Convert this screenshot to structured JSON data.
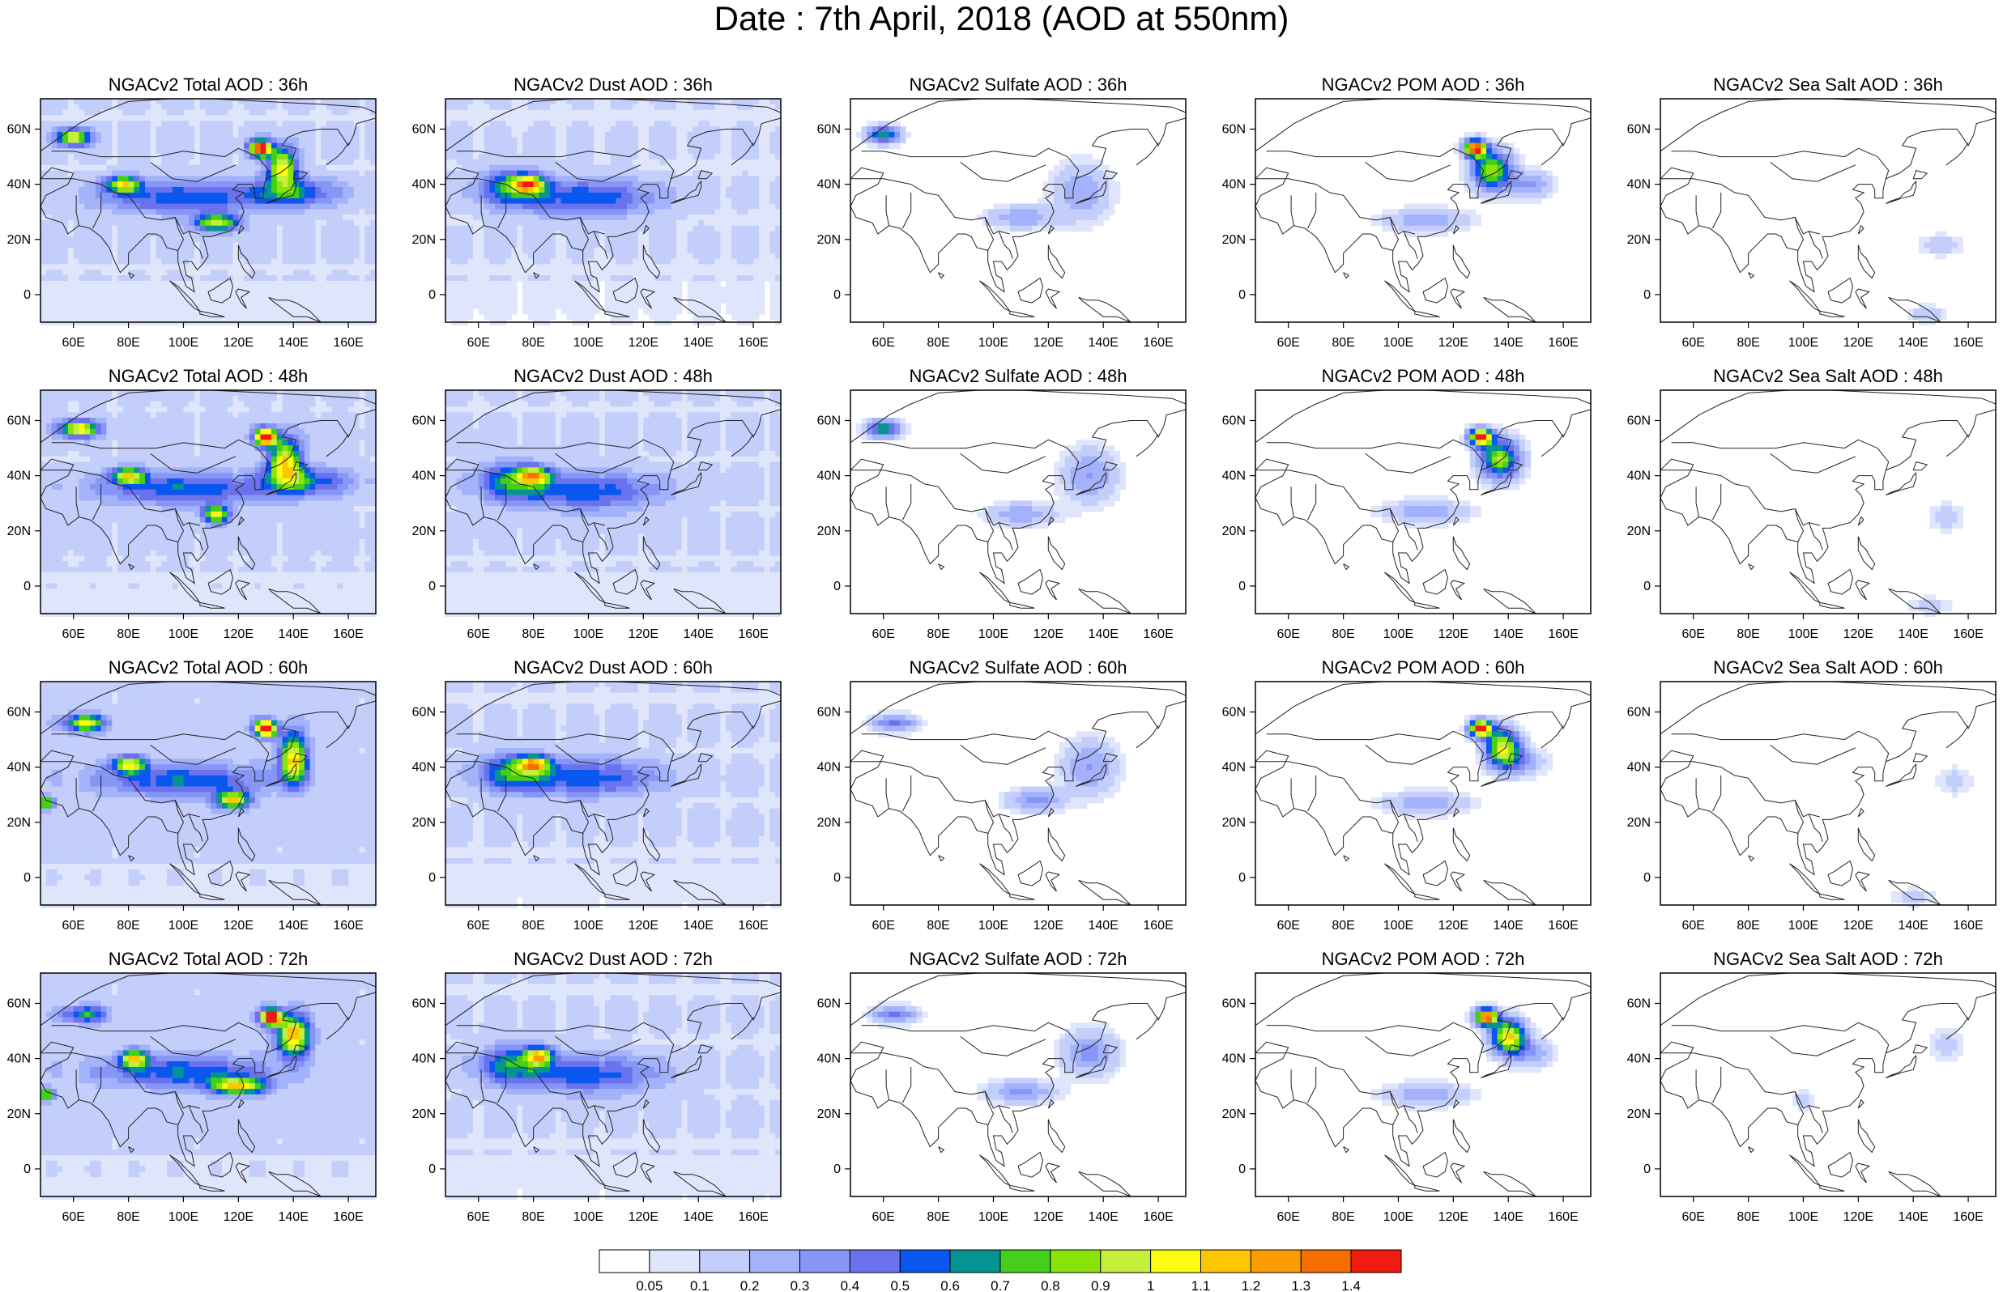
{
  "title": "Date : 7th April, 2018 (AOD at 550nm)",
  "panel_titles": [
    [
      "NGACv2 Total AOD : 36h",
      "NGACv2 Dust AOD : 36h",
      "NGACv2 Sulfate AOD : 36h",
      "NGACv2 POM AOD : 36h",
      "NGACv2 Sea Salt AOD : 36h"
    ],
    [
      "NGACv2 Total AOD : 48h",
      "NGACv2 Dust AOD : 48h",
      "NGACv2 Sulfate AOD : 48h",
      "NGACv2 POM AOD : 48h",
      "NGACv2 Sea Salt AOD : 48h"
    ],
    [
      "NGACv2 Total AOD : 60h",
      "NGACv2 Dust AOD : 60h",
      "NGACv2 Sulfate AOD : 60h",
      "NGACv2 POM AOD : 60h",
      "NGACv2 Sea Salt AOD : 60h"
    ],
    [
      "NGACv2 Total AOD : 72h",
      "NGACv2 Dust AOD : 72h",
      "NGACv2 Sulfate AOD : 72h",
      "NGACv2 POM AOD : 72h",
      "NGACv2 Sea Salt  AOD : 72h"
    ]
  ],
  "axes": {
    "x_ticks": [
      "60E",
      "80E",
      "100E",
      "120E",
      "140E",
      "160E"
    ],
    "x_values": [
      60,
      80,
      100,
      120,
      140,
      160
    ],
    "x_range": [
      48,
      170
    ],
    "y_ticks": [
      "60N",
      "40N",
      "20N",
      "0"
    ],
    "y_values": [
      60,
      40,
      20,
      0
    ],
    "y_range": [
      -10,
      71
    ]
  },
  "colorbar": {
    "labels": [
      "0.05",
      "0.1",
      "0.2",
      "0.3",
      "0.4",
      "0.5",
      "0.6",
      "0.7",
      "0.8",
      "0.9",
      "1",
      "1.1",
      "1.2",
      "1.3",
      "1.4"
    ],
    "colors": [
      "#ffffff",
      "#dfe5fb",
      "#c3cefb",
      "#a3b2fa",
      "#8696f6",
      "#6a72ee",
      "#0a57ef",
      "#069492",
      "#44d018",
      "#8ae40a",
      "#c4f03a",
      "#fcfc10",
      "#fcc600",
      "#fa9c00",
      "#f46e00",
      "#f01c10"
    ]
  },
  "fields": [
    [
      {
        "bg": 0.16,
        "hot": [
          [
            60,
            57,
            6,
            3,
            0.95
          ],
          [
            78,
            40,
            6,
            3,
            0.85
          ],
          [
            128,
            53,
            4,
            3,
            1.45
          ],
          [
            136,
            46,
            5,
            7,
            1.0
          ],
          [
            112,
            26,
            8,
            3,
            0.85
          ],
          [
            100,
            35,
            30,
            6,
            0.45
          ],
          [
            140,
            37,
            16,
            5,
            0.45
          ]
        ]
      },
      {
        "bg": 0.14,
        "hot": [
          [
            78,
            40,
            6,
            3,
            0.85
          ],
          [
            72,
            39,
            12,
            7,
            0.5
          ],
          [
            100,
            35,
            25,
            7,
            0.45
          ]
        ]
      },
      {
        "bg": 0.0,
        "hot": [
          [
            60,
            58,
            6,
            3,
            0.7
          ],
          [
            110,
            28,
            12,
            4,
            0.3
          ],
          [
            132,
            37,
            10,
            10,
            0.3
          ]
        ]
      },
      {
        "bg": 0.0,
        "hot": [
          [
            128,
            53,
            4,
            3,
            1.45
          ],
          [
            134,
            45,
            7,
            7,
            0.9
          ],
          [
            110,
            27,
            15,
            4,
            0.3
          ],
          [
            148,
            40,
            8,
            5,
            0.3
          ]
        ]
      },
      {
        "bg": 0.0,
        "hot": [
          [
            150,
            18,
            8,
            4,
            0.15
          ],
          [
            145,
            -7,
            8,
            3,
            0.15
          ]
        ]
      }
    ],
    [
      {
        "bg": 0.17,
        "hot": [
          [
            62,
            57,
            7,
            3,
            1.0
          ],
          [
            80,
            40,
            6,
            3,
            0.85
          ],
          [
            130,
            54,
            4,
            3,
            1.45
          ],
          [
            137,
            45,
            6,
            8,
            1.0
          ],
          [
            112,
            26,
            5,
            3,
            0.9
          ],
          [
            100,
            35,
            30,
            6,
            0.45
          ],
          [
            145,
            38,
            16,
            5,
            0.45
          ]
        ]
      },
      {
        "bg": 0.16,
        "hot": [
          [
            80,
            40,
            6,
            3,
            0.85
          ],
          [
            72,
            38,
            12,
            7,
            0.5
          ],
          [
            100,
            34,
            25,
            7,
            0.45
          ]
        ]
      },
      {
        "bg": 0.0,
        "hot": [
          [
            60,
            57,
            6,
            3,
            0.7
          ],
          [
            110,
            26,
            12,
            4,
            0.3
          ],
          [
            135,
            40,
            10,
            10,
            0.3
          ]
        ]
      },
      {
        "bg": 0.0,
        "hot": [
          [
            130,
            54,
            4,
            3,
            1.45
          ],
          [
            137,
            46,
            7,
            7,
            0.9
          ],
          [
            110,
            27,
            15,
            4,
            0.3
          ]
        ]
      },
      {
        "bg": 0.0,
        "hot": [
          [
            152,
            25,
            6,
            5,
            0.15
          ],
          [
            146,
            -7,
            8,
            3,
            0.15
          ]
        ]
      }
    ],
    [
      {
        "bg": 0.18,
        "hot": [
          [
            64,
            56,
            7,
            3,
            0.9
          ],
          [
            80,
            41,
            6,
            3,
            0.85
          ],
          [
            130,
            54,
            4,
            3,
            1.45
          ],
          [
            140,
            43,
            5,
            9,
            1.0
          ],
          [
            118,
            28,
            6,
            3,
            0.95
          ],
          [
            50,
            27,
            3,
            2,
            0.85
          ],
          [
            100,
            35,
            30,
            6,
            0.45
          ]
        ]
      },
      {
        "bg": 0.15,
        "hot": [
          [
            80,
            41,
            6,
            3,
            0.85
          ],
          [
            72,
            38,
            12,
            7,
            0.5
          ],
          [
            100,
            36,
            25,
            7,
            0.45
          ]
        ]
      },
      {
        "bg": 0.0,
        "hot": [
          [
            64,
            56,
            8,
            3,
            0.45
          ],
          [
            115,
            28,
            10,
            4,
            0.35
          ],
          [
            135,
            40,
            10,
            10,
            0.3
          ]
        ]
      },
      {
        "bg": 0.0,
        "hot": [
          [
            130,
            54,
            4,
            3,
            1.45
          ],
          [
            138,
            47,
            6,
            7,
            1.0
          ],
          [
            110,
            27,
            15,
            4,
            0.3
          ],
          [
            145,
            42,
            8,
            5,
            0.3
          ]
        ]
      },
      {
        "bg": 0.0,
        "hot": [
          [
            155,
            35,
            6,
            5,
            0.15
          ],
          [
            140,
            -7,
            8,
            3,
            0.15
          ]
        ]
      }
    ],
    [
      {
        "bg": 0.18,
        "hot": [
          [
            64,
            56,
            8,
            3,
            0.55
          ],
          [
            82,
            40,
            5,
            3,
            0.9
          ],
          [
            132,
            55,
            4,
            3,
            1.45
          ],
          [
            140,
            48,
            6,
            7,
            1.1
          ],
          [
            120,
            30,
            10,
            3,
            0.9
          ],
          [
            50,
            27,
            3,
            2,
            0.9
          ],
          [
            100,
            35,
            30,
            6,
            0.45
          ]
        ]
      },
      {
        "bg": 0.15,
        "hot": [
          [
            82,
            41,
            5,
            3,
            0.85
          ],
          [
            72,
            38,
            12,
            7,
            0.5
          ],
          [
            100,
            34,
            25,
            7,
            0.45
          ]
        ]
      },
      {
        "bg": 0.0,
        "hot": [
          [
            64,
            56,
            8,
            3,
            0.45
          ],
          [
            110,
            28,
            12,
            4,
            0.35
          ],
          [
            135,
            42,
            10,
            8,
            0.35
          ]
        ]
      },
      {
        "bg": 0.0,
        "hot": [
          [
            132,
            55,
            4,
            3,
            1.45
          ],
          [
            140,
            48,
            6,
            6,
            1.1
          ],
          [
            110,
            27,
            15,
            4,
            0.3
          ],
          [
            148,
            42,
            8,
            5,
            0.3
          ]
        ]
      },
      {
        "bg": 0.0,
        "hot": [
          [
            152,
            45,
            5,
            5,
            0.2
          ],
          [
            100,
            25,
            5,
            3,
            0.15
          ]
        ]
      }
    ]
  ]
}
